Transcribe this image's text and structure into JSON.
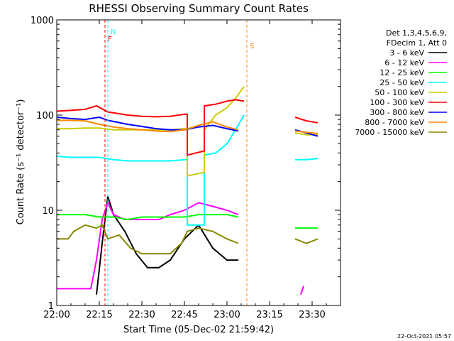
{
  "chart_data": {
    "type": "line",
    "title": "RHESSI Observing Summary Count Rates",
    "xlabel": "Start Time (05-Dec-02 21:59:42)",
    "ylabel": "Count Rate (s⁻¹ detector⁻¹)",
    "x_unit": "minutes",
    "xlim": [
      0,
      100
    ],
    "ylim": [
      1,
      1000
    ],
    "yscale": "log",
    "xticks": [
      {
        "v": 0,
        "label": "22:00"
      },
      {
        "v": 15,
        "label": "22:15"
      },
      {
        "v": 30,
        "label": "22:30"
      },
      {
        "v": 45,
        "label": "22:45"
      },
      {
        "v": 60,
        "label": "23:00"
      },
      {
        "v": 75,
        "label": "23:15"
      },
      {
        "v": 90,
        "label": "23:30"
      }
    ],
    "yticks": [
      {
        "v": 1,
        "label": "1"
      },
      {
        "v": 10,
        "label": "10"
      },
      {
        "v": 100,
        "label": "100"
      },
      {
        "v": 1000,
        "label": "1000"
      }
    ],
    "legend_header": [
      "Det 1,3,4,5,6,9,",
      "FDecim 1, Att 0"
    ],
    "series": [
      {
        "name": "3 - 6 keV",
        "color": "#000000",
        "segments": [
          [
            [
              14,
              1.3
            ],
            [
              16,
              4.5
            ],
            [
              18,
              14
            ],
            [
              20,
              9
            ],
            [
              24,
              6
            ],
            [
              28,
              3.5
            ],
            [
              32,
              2.5
            ],
            [
              36,
              2.5
            ],
            [
              40,
              3
            ],
            [
              45,
              5
            ],
            [
              50,
              7
            ],
            [
              55,
              4
            ],
            [
              60,
              3
            ],
            [
              64,
              3
            ]
          ]
        ]
      },
      {
        "name": "6 - 12 keV",
        "color": "#ff00ff",
        "segments": [
          [
            [
              0,
              1.5
            ],
            [
              12,
              1.5
            ],
            [
              14,
              3
            ],
            [
              16,
              8
            ],
            [
              18,
              12
            ],
            [
              20,
              9
            ],
            [
              24,
              8
            ],
            [
              30,
              8
            ],
            [
              36,
              8
            ],
            [
              40,
              9
            ],
            [
              45,
              10
            ],
            [
              50,
              12
            ],
            [
              55,
              11
            ],
            [
              60,
              10
            ],
            [
              64,
              9
            ]
          ],
          [
            [
              86,
              1.3
            ],
            [
              87,
              1.6
            ]
          ]
        ]
      },
      {
        "name": "12 - 25 keV",
        "color": "#00ff00",
        "segments": [
          [
            [
              0,
              9
            ],
            [
              5,
              9
            ],
            [
              10,
              9
            ],
            [
              15,
              8.5
            ],
            [
              20,
              8.5
            ],
            [
              25,
              8
            ],
            [
              30,
              8.5
            ],
            [
              35,
              8.5
            ],
            [
              40,
              8.5
            ],
            [
              45,
              8.5
            ],
            [
              50,
              9
            ],
            [
              55,
              9
            ],
            [
              60,
              9
            ],
            [
              64,
              8.5
            ]
          ],
          [
            [
              84,
              6.5
            ],
            [
              88,
              6.5
            ],
            [
              92,
              6.5
            ]
          ]
        ]
      },
      {
        "name": "25 - 50 keV",
        "color": "#00ffff",
        "segments": [
          [
            [
              0,
              37
            ],
            [
              5,
              36
            ],
            [
              10,
              36
            ],
            [
              15,
              36
            ],
            [
              20,
              34
            ],
            [
              25,
              33
            ],
            [
              30,
              33
            ],
            [
              35,
              33
            ],
            [
              40,
              33
            ],
            [
              45,
              34
            ],
            [
              46,
              34
            ],
            [
              46,
              7
            ],
            [
              52,
              7
            ],
            [
              52,
              38
            ],
            [
              56,
              40
            ],
            [
              60,
              50
            ],
            [
              63,
              70
            ],
            [
              66,
              100
            ]
          ],
          [
            [
              84,
              34
            ],
            [
              88,
              34
            ],
            [
              92,
              35
            ]
          ]
        ]
      },
      {
        "name": "50 - 100 keV",
        "color": "#cccc00",
        "segments": [
          [
            [
              0,
              72
            ],
            [
              5,
              72
            ],
            [
              10,
              73
            ],
            [
              15,
              73
            ],
            [
              20,
              70
            ],
            [
              25,
              70
            ],
            [
              30,
              70
            ],
            [
              35,
              70
            ],
            [
              40,
              70
            ],
            [
              45,
              72
            ],
            [
              46,
              72
            ],
            [
              46,
              23
            ],
            [
              52,
              25
            ],
            [
              52,
              70
            ],
            [
              56,
              100
            ],
            [
              60,
              120
            ],
            [
              63,
              150
            ],
            [
              66,
              200
            ]
          ],
          [
            [
              84,
              65
            ],
            [
              88,
              62
            ],
            [
              92,
              62
            ]
          ]
        ]
      },
      {
        "name": "100 - 300 keV",
        "color": "#ff0000",
        "segments": [
          [
            [
              0,
              110
            ],
            [
              5,
              112
            ],
            [
              10,
              115
            ],
            [
              14,
              125
            ],
            [
              18,
              108
            ],
            [
              25,
              100
            ],
            [
              30,
              97
            ],
            [
              35,
              96
            ],
            [
              40,
              97
            ],
            [
              45,
              102
            ],
            [
              46,
              102
            ],
            [
              46,
              38
            ],
            [
              52,
              42
            ],
            [
              52,
              125
            ],
            [
              56,
              130
            ],
            [
              60,
              140
            ],
            [
              63,
              145
            ],
            [
              66,
              140
            ]
          ],
          [
            [
              84,
              95
            ],
            [
              88,
              87
            ],
            [
              92,
              83
            ]
          ]
        ]
      },
      {
        "name": "300 - 800 keV",
        "color": "#0000ff",
        "segments": [
          [
            [
              0,
              95
            ],
            [
              5,
              92
            ],
            [
              10,
              90
            ],
            [
              15,
              95
            ],
            [
              18,
              88
            ],
            [
              25,
              80
            ],
            [
              30,
              76
            ],
            [
              35,
              72
            ],
            [
              40,
              70
            ],
            [
              45,
              70
            ],
            [
              50,
              75
            ],
            [
              55,
              78
            ],
            [
              60,
              72
            ],
            [
              64,
              68
            ]
          ],
          [
            [
              84,
              70
            ],
            [
              88,
              65
            ],
            [
              92,
              60
            ]
          ]
        ]
      },
      {
        "name": "800 - 7000 keV",
        "color": "#ff8800",
        "segments": [
          [
            [
              0,
              88
            ],
            [
              5,
              88
            ],
            [
              10,
              87
            ],
            [
              15,
              80
            ],
            [
              20,
              75
            ],
            [
              25,
              72
            ],
            [
              30,
              70
            ],
            [
              35,
              68
            ],
            [
              40,
              67
            ],
            [
              45,
              70
            ],
            [
              50,
              78
            ],
            [
              55,
              85
            ],
            [
              60,
              75
            ],
            [
              64,
              70
            ]
          ],
          [
            [
              84,
              68
            ],
            [
              88,
              66
            ],
            [
              92,
              64
            ]
          ]
        ]
      },
      {
        "name": "7000 - 15000 keV",
        "color": "#888800",
        "segments": [
          [
            [
              0,
              5
            ],
            [
              4,
              5
            ],
            [
              6,
              6
            ],
            [
              10,
              7
            ],
            [
              14,
              6.5
            ],
            [
              16,
              7
            ],
            [
              18,
              5
            ],
            [
              22,
              5.5
            ],
            [
              26,
              4
            ],
            [
              30,
              3.5
            ],
            [
              35,
              3.5
            ],
            [
              40,
              3.5
            ],
            [
              44,
              4.5
            ],
            [
              46,
              6
            ],
            [
              50,
              6.5
            ],
            [
              55,
              6
            ],
            [
              60,
              5
            ],
            [
              64,
              4.5
            ]
          ],
          [
            [
              84,
              5
            ],
            [
              88,
              4.5
            ],
            [
              92,
              5
            ]
          ]
        ]
      }
    ],
    "annotations": [
      {
        "label": "N",
        "color": "#00ffff",
        "x": 18
      },
      {
        "label": "F",
        "color": "#ff0000",
        "x": 17
      },
      {
        "label": "S",
        "color": "#ff8800",
        "x": 67
      }
    ],
    "timestamp": "22-Oct-2021 05:57"
  }
}
